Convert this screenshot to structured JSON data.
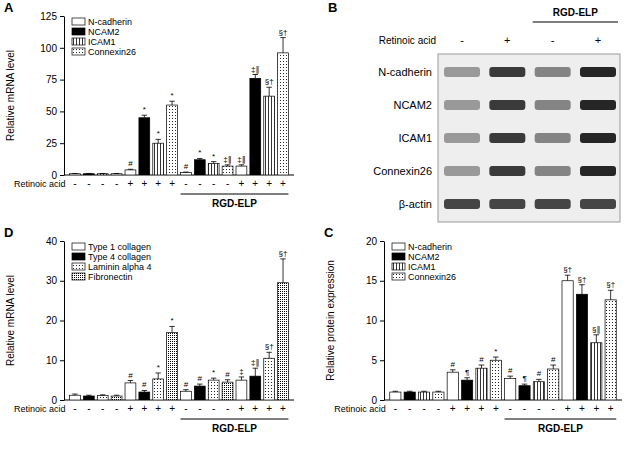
{
  "chart_data": [
    {
      "type": "bar",
      "title": "A",
      "ylabel": "Relative mRNA level",
      "xlabel": "Retinoic acid",
      "categories": [
        "-",
        "+",
        "-",
        "+"
      ],
      "ylim": [
        0,
        125
      ],
      "yticks": [
        0,
        25,
        50,
        75,
        100,
        125
      ],
      "legend": "upper left",
      "annotations": [
        {
          "text": "RGD-ELP",
          "from": 2,
          "to": 3
        }
      ],
      "series": [
        {
          "name": "N-cadherin",
          "values": [
            1,
            4,
            2,
            7
          ],
          "errors": [
            0.2,
            0.5,
            0.3,
            1
          ],
          "significance": [
            null,
            "#",
            "#",
            "‡∥"
          ]
        },
        {
          "name": "NCAM2",
          "values": [
            1,
            45,
            12,
            76
          ],
          "errors": [
            0.2,
            2,
            1,
            3
          ],
          "significance": [
            null,
            "*",
            "*",
            "‡∥"
          ]
        },
        {
          "name": "ICAM1",
          "values": [
            1,
            25,
            9,
            62
          ],
          "errors": [
            0.2,
            3,
            1.5,
            7
          ],
          "significance": [
            null,
            "*",
            "*",
            "§†"
          ]
        },
        {
          "name": "Connexin26",
          "values": [
            1,
            55,
            7,
            96
          ],
          "errors": [
            0.2,
            3,
            1,
            12
          ],
          "significance": [
            null,
            "*",
            "‡∥",
            "§†"
          ]
        }
      ]
    },
    {
      "type": "bar",
      "title": "D",
      "ylabel": "Relative mRNA level",
      "xlabel": "Retinoic acid",
      "categories": [
        "-",
        "+",
        "-",
        "+"
      ],
      "ylim": [
        0,
        40
      ],
      "yticks": [
        0,
        10,
        20,
        30,
        40
      ],
      "legend": "upper left",
      "annotations": [
        {
          "text": "RGD-ELP",
          "from": 2,
          "to": 3
        }
      ],
      "series": [
        {
          "name": "Type 1 collagen",
          "values": [
            1.2,
            4.3,
            2.2,
            5
          ],
          "errors": [
            0.3,
            0.6,
            0.4,
            0.8
          ],
          "significance": [
            null,
            "#",
            "#",
            "‡"
          ]
        },
        {
          "name": "Type 4 collagen",
          "values": [
            1,
            2,
            3.5,
            6
          ],
          "errors": [
            0.2,
            0.4,
            0.5,
            2
          ],
          "significance": [
            null,
            "#",
            "#",
            "‡∥"
          ]
        },
        {
          "name": "Laminin alpha 4",
          "values": [
            1.1,
            5.3,
            5,
            10.5
          ],
          "errors": [
            0.2,
            1.5,
            0.5,
            1.5
          ],
          "significance": [
            null,
            "*",
            "*",
            "§†"
          ]
        },
        {
          "name": "Fibronectin",
          "values": [
            1,
            17,
            4.5,
            29.5
          ],
          "errors": [
            0.2,
            1.5,
            0.6,
            6
          ],
          "significance": [
            null,
            "*",
            "#",
            "§†"
          ]
        }
      ]
    },
    {
      "type": "bar",
      "title": "C",
      "ylabel": "Relative protein expression",
      "xlabel": "Retinoic acid",
      "categories": [
        "-",
        "+",
        "-",
        "+"
      ],
      "ylim": [
        0,
        20
      ],
      "yticks": [
        0,
        5,
        10,
        15,
        20
      ],
      "legend": "upper left",
      "annotations": [
        {
          "text": "RGD-ELP",
          "from": 2,
          "to": 3
        }
      ],
      "series": [
        {
          "name": "N-cadherin",
          "values": [
            1,
            3.5,
            2.7,
            15
          ],
          "errors": [
            0.1,
            0.3,
            0.3,
            0.7
          ],
          "significance": [
            null,
            "#",
            "#",
            "§†"
          ]
        },
        {
          "name": "NCAM2",
          "values": [
            1,
            2.5,
            1.8,
            13.3
          ],
          "errors": [
            0.1,
            0.3,
            0.2,
            1.2
          ],
          "significance": [
            null,
            "¶",
            "¶",
            "§†"
          ]
        },
        {
          "name": "ICAM1",
          "values": [
            1,
            4,
            2.3,
            7.2
          ],
          "errors": [
            0.1,
            0.4,
            0.3,
            1
          ],
          "significance": [
            null,
            "#",
            "#",
            "§∥"
          ]
        },
        {
          "name": "Connexin26",
          "values": [
            1,
            5,
            3.9,
            12.6
          ],
          "errors": [
            0.1,
            0.4,
            0.5,
            1.2
          ],
          "significance": [
            null,
            "*",
            "#",
            "§†"
          ]
        }
      ]
    }
  ],
  "blot": {
    "title": "B",
    "xlabel": "Retinoic acid",
    "lanes": [
      "-",
      "+",
      "-",
      "+"
    ],
    "annotations": [
      {
        "text": "RGD-ELP",
        "from": 2,
        "to": 3
      }
    ],
    "row_labels": [
      "N-cadherin",
      "NCAM2",
      "ICAM1",
      "Connexin26",
      "β-actin"
    ]
  }
}
